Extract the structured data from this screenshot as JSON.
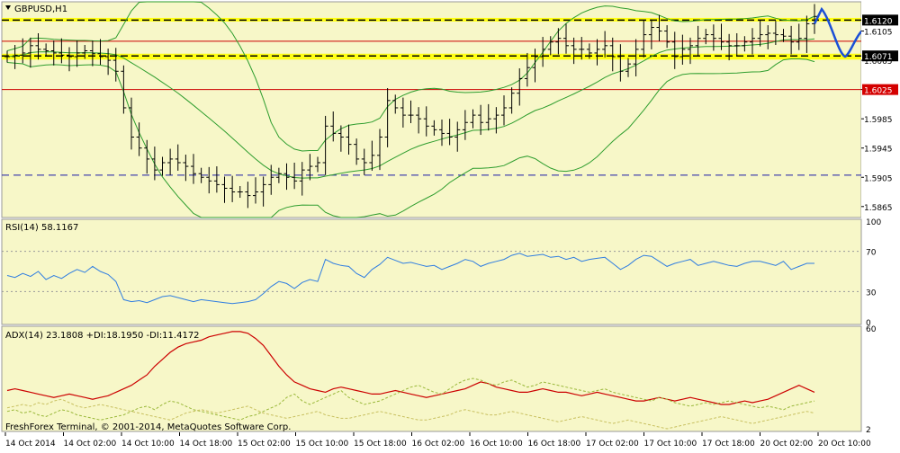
{
  "window": {
    "symbol_label": "GBPUSD,H1"
  },
  "colors": {
    "bg": "#f7f7c8",
    "axis_bg": "#ffffff",
    "candle": "#000000",
    "bollinger": "#2e9d2e",
    "hline_red": "#cc0000",
    "hline_blue": "#1a1aa6",
    "zone_yellow": "#ffff00",
    "rsi": "#2f7de1",
    "adx": "#cc0000",
    "di_plus": "#9ab83a",
    "di_minus": "#c8c060",
    "forecast": "#1a4fd6",
    "level_black_bg": "#000000",
    "level_red_bg": "#d40000"
  },
  "footer": {
    "credit": "FreshForex Terminal, © 2001-2014, MetaQuotes Software Corp."
  },
  "chart_data": [
    {
      "type": "candlestick",
      "title": "GBPUSD,H1",
      "ylim": [
        1.585,
        1.6145
      ],
      "y_ticks": [
        "1.6105",
        "1.6065",
        "1.6025",
        "1.5985",
        "1.5945",
        "1.5905",
        "1.5865"
      ],
      "x_ticks": [
        "14 Oct 2014",
        "14 Oct 02:00",
        "14 Oct 10:00",
        "14 Oct 18:00",
        "15 Oct 02:00",
        "15 Oct 10:00",
        "15 Oct 18:00",
        "16 Oct 02:00",
        "16 Oct 10:00",
        "16 Oct 18:00",
        "17 Oct 02:00",
        "17 Oct 10:00",
        "17 Oct 18:00",
        "20 Oct 02:00",
        "20 Oct 10:00"
      ],
      "close_series": [
        1.607,
        1.6072,
        1.6075,
        1.6085,
        1.608,
        1.6078,
        1.6075,
        1.6072,
        1.607,
        1.6075,
        1.6078,
        1.6074,
        1.607,
        1.6065,
        1.605,
        1.6,
        1.596,
        1.5945,
        1.593,
        1.5915,
        1.5925,
        1.593,
        1.5925,
        1.592,
        1.591,
        1.5905,
        1.59,
        1.5895,
        1.589,
        1.5885,
        1.5885,
        1.588,
        1.5885,
        1.5895,
        1.5905,
        1.591,
        1.5905,
        1.59,
        1.5915,
        1.592,
        1.5925,
        1.5975,
        1.5965,
        1.596,
        1.595,
        1.593,
        1.5925,
        1.5935,
        1.596,
        1.601,
        1.6,
        1.599,
        1.599,
        1.5985,
        1.5975,
        1.597,
        1.5965,
        1.596,
        1.597,
        1.598,
        1.599,
        1.598,
        1.5985,
        1.599,
        1.6,
        1.602,
        1.604,
        1.6055,
        1.607,
        1.608,
        1.609,
        1.6095,
        1.6085,
        1.608,
        1.608,
        1.6075,
        1.608,
        1.6085,
        1.607,
        1.605,
        1.606,
        1.608,
        1.61,
        1.611,
        1.6105,
        1.609,
        1.607,
        1.608,
        1.6085,
        1.6095,
        1.61,
        1.6095,
        1.609,
        1.6085,
        1.6085,
        1.609,
        1.6095,
        1.61,
        1.6102,
        1.61,
        1.6098,
        1.609,
        1.6095,
        1.6115,
        1.6125
      ],
      "levels": [
        {
          "value": 1.612,
          "label": "1.6120",
          "style": "dashed-black",
          "tag": "black"
        },
        {
          "value": 1.6091,
          "label": "",
          "style": "solid-red"
        },
        {
          "value": 1.6071,
          "label": "1.6071",
          "style": "dashed-black",
          "tag": "black"
        },
        {
          "value": 1.6025,
          "label": "1.6025",
          "style": "solid-red",
          "tag": "red"
        },
        {
          "value": 1.5908,
          "label": "",
          "style": "dashed-blue"
        }
      ],
      "zones": [
        {
          "from": 1.6118,
          "to": 1.6123
        },
        {
          "from": 1.6066,
          "to": 1.6074
        }
      ]
    },
    {
      "type": "line",
      "title": "RSI(14) 58.1167",
      "ylim": [
        0,
        100
      ],
      "y_ticks": [
        "100",
        "70",
        "30",
        "0"
      ],
      "reference_levels": [
        70,
        30
      ],
      "series": [
        {
          "values": [
            46,
            44,
            48,
            45,
            50,
            42,
            46,
            43,
            48,
            52,
            49,
            55,
            50,
            47,
            40,
            22,
            20,
            21,
            19,
            22,
            25,
            26,
            24,
            22,
            20,
            22,
            21,
            20,
            19,
            18,
            19,
            20,
            22,
            28,
            35,
            40,
            38,
            33,
            39,
            42,
            40,
            62,
            58,
            56,
            55,
            48,
            44,
            52,
            57,
            64,
            61,
            58,
            59,
            57,
            55,
            56,
            52,
            55,
            58,
            62,
            60,
            55,
            58,
            60,
            62,
            66,
            68,
            65,
            66,
            67,
            64,
            65,
            62,
            64,
            60,
            62,
            63,
            64,
            58,
            52,
            56,
            62,
            66,
            65,
            60,
            55,
            58,
            60,
            62,
            56,
            58,
            60,
            58,
            56,
            55,
            58,
            60,
            60,
            58,
            56,
            60,
            52,
            55,
            58,
            58
          ]
        }
      ]
    },
    {
      "type": "line",
      "title": "ADX(14) 23.1808 +DI:18.1950 -DI:11.4172",
      "ylim": [
        2,
        60
      ],
      "y_ticks": [
        "60",
        "2"
      ],
      "series": [
        {
          "values": [
            24,
            25,
            24,
            23,
            22,
            21,
            20,
            21,
            22,
            21,
            20,
            19,
            20,
            21,
            23,
            25,
            27,
            30,
            33,
            38,
            42,
            46,
            49,
            51,
            52,
            53,
            55,
            56,
            57,
            58,
            58,
            57,
            54,
            50,
            44,
            38,
            33,
            29,
            27,
            25,
            24,
            23,
            25,
            26,
            25,
            24,
            23,
            22,
            22,
            23,
            24,
            23,
            22,
            21,
            20,
            21,
            22,
            23,
            24,
            25,
            27,
            29,
            28,
            26,
            25,
            24,
            23,
            23,
            24,
            25,
            24,
            23,
            23,
            22,
            21,
            22,
            23,
            22,
            21,
            20,
            19,
            18,
            18,
            19,
            20,
            19,
            18,
            19,
            20,
            19,
            18,
            17,
            16,
            16,
            17,
            18,
            17,
            18,
            19,
            21,
            23,
            25,
            27,
            25,
            23
          ]
        },
        {
          "values": [
            12,
            13,
            11,
            12,
            10,
            9,
            11,
            13,
            12,
            10,
            9,
            8,
            7,
            8,
            9,
            10,
            12,
            14,
            15,
            13,
            16,
            18,
            17,
            15,
            13,
            12,
            11,
            10,
            9,
            8,
            7,
            9,
            10,
            12,
            14,
            16,
            20,
            22,
            18,
            16,
            18,
            20,
            22,
            24,
            20,
            18,
            16,
            17,
            18,
            20,
            22,
            24,
            26,
            27,
            25,
            23,
            22,
            25,
            28,
            30,
            31,
            30,
            28,
            27,
            29,
            30,
            28,
            26,
            27,
            29,
            28,
            27,
            26,
            25,
            24,
            23,
            24,
            25,
            23,
            22,
            21,
            20,
            19,
            18,
            20,
            19,
            17,
            16,
            15,
            16,
            17,
            16,
            17,
            18,
            17,
            16,
            15,
            14,
            15,
            14,
            13,
            15,
            16,
            17,
            18
          ]
        },
        {
          "values": [
            14,
            15,
            16,
            15,
            17,
            16,
            18,
            19,
            17,
            15,
            14,
            15,
            16,
            15,
            14,
            13,
            12,
            11,
            10,
            9,
            8,
            7,
            9,
            11,
            12,
            13,
            12,
            11,
            12,
            13,
            14,
            15,
            13,
            11,
            10,
            9,
            8,
            9,
            10,
            11,
            12,
            10,
            9,
            8,
            8,
            9,
            10,
            11,
            12,
            11,
            10,
            9,
            8,
            7,
            7,
            8,
            9,
            10,
            12,
            13,
            12,
            11,
            10,
            10,
            11,
            12,
            11,
            10,
            9,
            8,
            7,
            6,
            7,
            8,
            9,
            8,
            7,
            6,
            5,
            6,
            7,
            6,
            5,
            4,
            3,
            2,
            3,
            4,
            5,
            6,
            7,
            8,
            9,
            8,
            7,
            6,
            5,
            6,
            7,
            8,
            9,
            10,
            11,
            12,
            11
          ]
        }
      ]
    }
  ]
}
